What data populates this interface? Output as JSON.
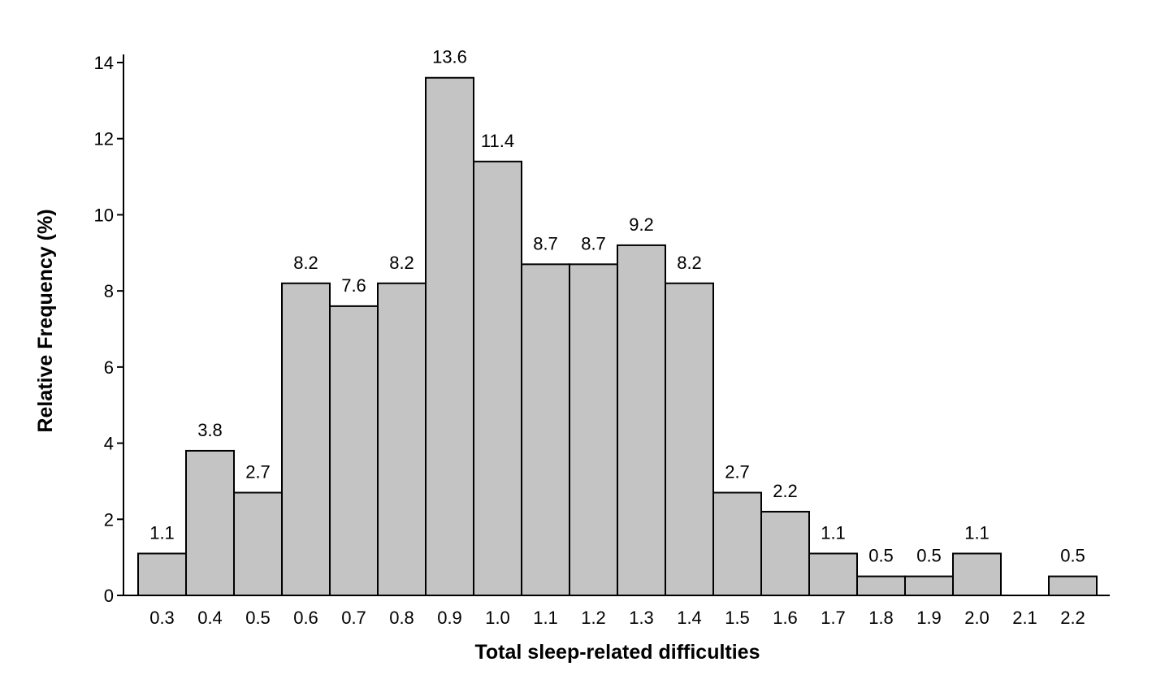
{
  "chart_data": {
    "type": "bar",
    "xlabel": "Total sleep-related difficulties",
    "ylabel": "Relative Frequency (%)",
    "ylim": [
      0,
      14
    ],
    "yticks": [
      0,
      2,
      4,
      6,
      8,
      10,
      12,
      14
    ],
    "categories": [
      "0.3",
      "0.4",
      "0.5",
      "0.6",
      "0.7",
      "0.8",
      "0.9",
      "1.0",
      "1.1",
      "1.2",
      "1.3",
      "1.4",
      "1.5",
      "1.6",
      "1.7",
      "1.8",
      "1.9",
      "2.0",
      "2.1",
      "2.2"
    ],
    "values": [
      1.1,
      3.8,
      2.7,
      8.2,
      7.6,
      8.2,
      13.6,
      11.4,
      8.7,
      8.7,
      9.2,
      8.2,
      2.7,
      2.2,
      1.1,
      0.5,
      0.5,
      1.1,
      0,
      0.5
    ],
    "data_labels": [
      "1.1",
      "3.8",
      "2.7",
      "8.2",
      "7.6",
      "8.2",
      "13.6",
      "11.4",
      "8.7",
      "8.7",
      "9.2",
      "8.2",
      "2.7",
      "2.2",
      "1.1",
      "0.5",
      "0.5",
      "1.1",
      "",
      "0.5"
    ],
    "bar_color": "#c4c4c4",
    "grid": false
  }
}
